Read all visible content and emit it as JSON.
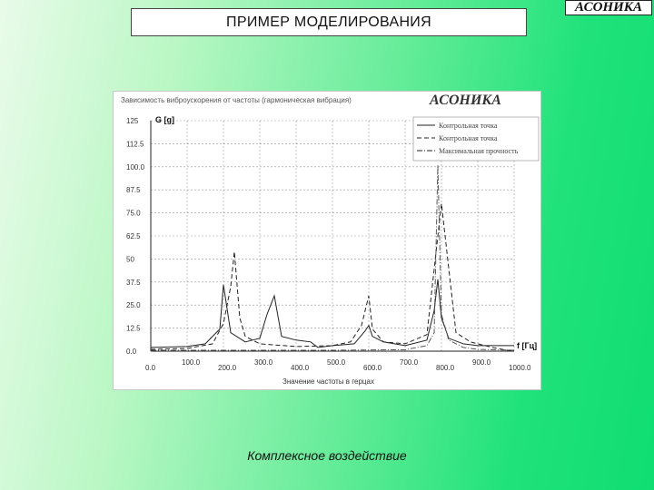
{
  "slide": {
    "title": "ПРИМЕР МОДЕЛИРОВАНИЯ",
    "brand": "АСОНИКА",
    "caption": "Комплексное воздействие"
  },
  "chart_panel": {
    "header": "Зависимость виброускорения от частоты (гармоническая вибрация)",
    "brand": "АСОНИКА"
  },
  "chart_data": {
    "type": "line",
    "title": "",
    "ylabel": "G [g]",
    "xlabel": "Значение частоты в герцах",
    "xunit": "f [Гц]",
    "xlim": [
      0,
      1000
    ],
    "ylim": [
      0,
      125
    ],
    "grid": true,
    "legend_position": "top-right",
    "y_ticks": [
      "125",
      "112.5",
      "100.0",
      "87.5",
      "75.0",
      "62.5",
      "50",
      "37.5",
      "25.0",
      "12.5",
      "0.0"
    ],
    "x_ticks": [
      "0.0",
      "100.0",
      "200.0",
      "300.0",
      "400.0",
      "500.0",
      "600.0",
      "700.0",
      "800.0",
      "900.0",
      "1000.0"
    ],
    "colors": {
      "series_1": "#222222",
      "series_2": "#222222",
      "series_3": "#555555",
      "grid": "#999999"
    },
    "series": [
      {
        "name": "Контрольная точка",
        "style": "solid",
        "x": [
          0,
          100,
          150,
          190,
          200,
          220,
          260,
          280,
          300,
          320,
          340,
          360,
          400,
          440,
          460,
          500,
          560,
          590,
          600,
          610,
          640,
          700,
          760,
          780,
          790,
          800,
          820,
          860,
          900,
          940,
          980,
          1000
        ],
        "y": [
          2,
          2.5,
          4,
          12,
          36,
          10,
          5,
          6,
          7,
          20,
          30,
          8,
          6,
          5,
          2,
          3,
          4,
          11,
          14,
          8,
          5,
          3,
          6,
          22,
          39,
          18,
          7,
          4,
          3,
          3,
          3,
          3
        ]
      },
      {
        "name": "Контрольная точка",
        "style": "dashed",
        "x": [
          0,
          100,
          170,
          200,
          220,
          230,
          245,
          260,
          300,
          400,
          500,
          550,
          580,
          600,
          610,
          640,
          700,
          760,
          800,
          840,
          880,
          900,
          940,
          980,
          1000
        ],
        "y": [
          1,
          1.5,
          4,
          15,
          35,
          54,
          18,
          8,
          4,
          2.5,
          3,
          5,
          14,
          30,
          12,
          5,
          4,
          9,
          80,
          10,
          5,
          4,
          2,
          0.5,
          0.5
        ]
      },
      {
        "name": "Максимальная прочность",
        "style": "dashdot",
        "x": [
          0,
          500,
          700,
          760,
          780,
          790,
          800,
          820,
          860,
          900,
          1000
        ],
        "y": [
          0.5,
          0.5,
          0.8,
          3,
          10,
          101,
          20,
          6,
          2,
          1,
          0.5
        ]
      }
    ]
  }
}
